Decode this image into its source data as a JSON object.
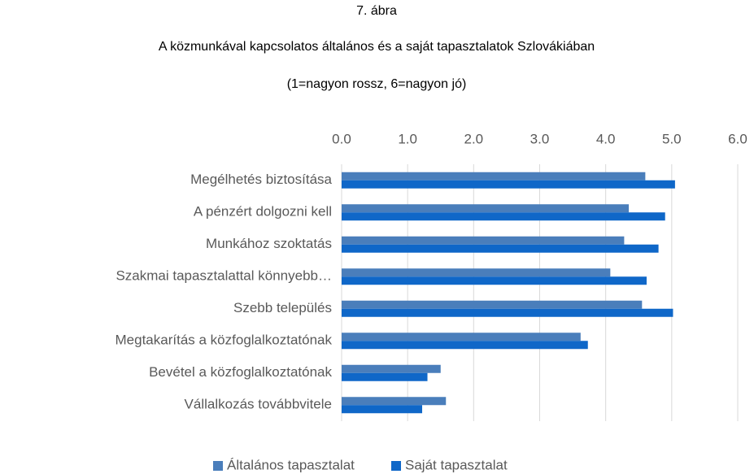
{
  "chart_data": {
    "type": "bar",
    "orientation": "horizontal",
    "title": [
      "7. ábra",
      "A közmunkával kapcsolatos általános és a saját tapasztalatok Szlovákiában"
    ],
    "subtitle": "(1=nagyon rossz, 6=nagyon jó)",
    "categories": [
      "Megélhetés biztosítása",
      "A pénzért dolgozni kell",
      "Munkához szoktatás",
      "Szakmai tapasztalattal könnyebb…",
      "Szebb település",
      "Megtakarítás a közfoglalkoztatónak",
      "Bevétel a közfoglalkoztatónak",
      "Vállalkozás továbbvitele"
    ],
    "series": [
      {
        "name": "Általános tapasztalat",
        "color": "#4a7ebb",
        "values": [
          4.6,
          4.35,
          4.28,
          4.07,
          4.55,
          3.62,
          1.5,
          1.58
        ]
      },
      {
        "name": "Saját tapasztalat",
        "color": "#0f67c8",
        "values": [
          5.05,
          4.9,
          4.8,
          4.62,
          5.02,
          3.73,
          1.3,
          1.22
        ]
      }
    ],
    "xlim": [
      0,
      6
    ],
    "xticks": [
      {
        "value": 0,
        "label": "0.0"
      },
      {
        "value": 1,
        "label": "1.0"
      },
      {
        "value": 2,
        "label": "2.0"
      },
      {
        "value": 3,
        "label": "3.0"
      },
      {
        "value": 4,
        "label": "4.0"
      },
      {
        "value": 5,
        "label": "5.0"
      },
      {
        "value": 6,
        "label": "6.0"
      }
    ],
    "grid": true,
    "legend": "bottom"
  }
}
